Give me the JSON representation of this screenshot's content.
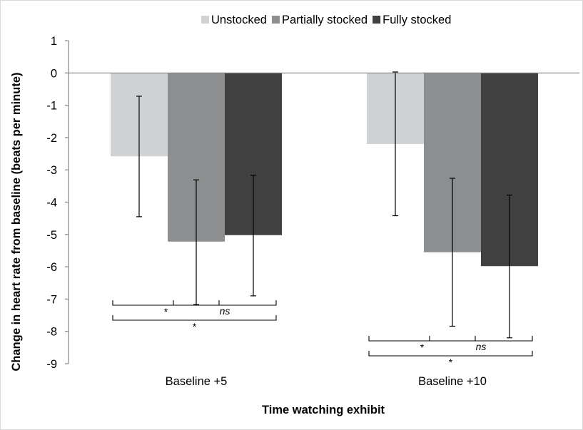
{
  "chart_data": {
    "type": "bar",
    "title": "",
    "xlabel": "Time watching exhibit",
    "ylabel": "Change in heart rate from baseline (beats per minute)",
    "ylim": [
      -9,
      1
    ],
    "yticks": [
      1,
      0,
      -1,
      -2,
      -3,
      -4,
      -5,
      -6,
      -7,
      -8,
      -9
    ],
    "grid": false,
    "legend_position": "top",
    "categories": [
      "Baseline +5",
      "Baseline +10"
    ],
    "series": [
      {
        "name": "Unstocked",
        "color": "#d0d2d3",
        "values": [
          -2.58,
          -2.2
        ],
        "error_low": [
          -4.45,
          -4.42
        ],
        "error_high": [
          -0.72,
          0.03
        ]
      },
      {
        "name": "Partially stocked",
        "color": "#8c8e90",
        "values": [
          -5.22,
          -5.55
        ],
        "error_low": [
          -7.17,
          -7.84
        ],
        "error_high": [
          -3.31,
          -3.26
        ]
      },
      {
        "name": "Fully stocked",
        "color": "#404041",
        "values": [
          -5.02,
          -5.98
        ],
        "error_low": [
          -6.9,
          -8.2
        ],
        "error_high": [
          -3.17,
          -3.78
        ]
      }
    ],
    "annotations": [
      {
        "category": 0,
        "from_series": 0,
        "to_series": 1,
        "level": 1,
        "label": "*",
        "italic": false
      },
      {
        "category": 0,
        "from_series": 1,
        "to_series": 2,
        "level": 1,
        "label": "ns",
        "italic": true
      },
      {
        "category": 0,
        "from_series": 0,
        "to_series": 2,
        "level": 2,
        "label": "*",
        "italic": false
      },
      {
        "category": 1,
        "from_series": 0,
        "to_series": 1,
        "level": 1,
        "label": "*",
        "italic": false
      },
      {
        "category": 1,
        "from_series": 1,
        "to_series": 2,
        "level": 1,
        "label": "ns",
        "italic": true
      },
      {
        "category": 1,
        "from_series": 0,
        "to_series": 2,
        "level": 2,
        "label": "*",
        "italic": false
      }
    ]
  }
}
